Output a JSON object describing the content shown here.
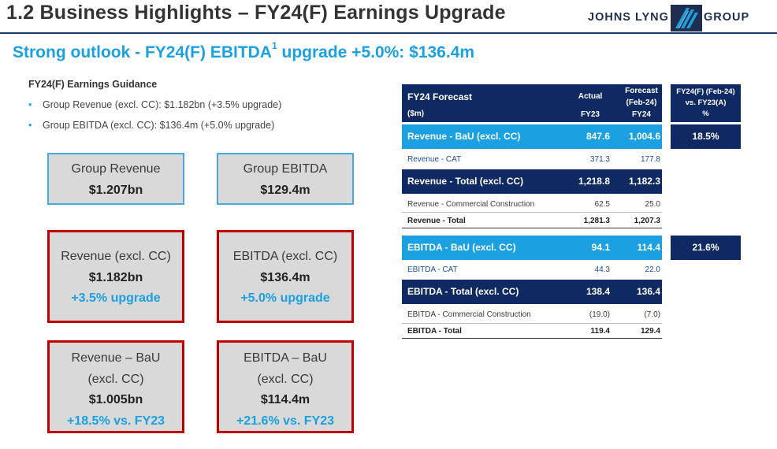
{
  "header": {
    "title": "1.2 Business Highlights – FY24(F) Earnings Upgrade",
    "logo_left": "JOHNS LYNG",
    "logo_right": "GROUP"
  },
  "subtitle": {
    "text": "Strong outlook - FY24(F) EBITDA",
    "sup": "1",
    "text_after": " upgrade +5.0%: $136.4m"
  },
  "guidance": {
    "heading": "FY24(F) Earnings Guidance",
    "bullets": [
      "Group Revenue (excl. CC): $1.182bn (+3.5% upgrade)",
      "Group EBITDA (excl. CC): $136.4m (+5.0% upgrade)"
    ]
  },
  "boxes": {
    "group_revenue": {
      "label": "Group Revenue",
      "value": "$1.207bn"
    },
    "group_ebitda": {
      "label": "Group EBITDA",
      "value": "$129.4m"
    },
    "revenue_excl": {
      "label": "Revenue (excl. CC)",
      "value": "$1.182bn",
      "note": "+3.5% upgrade"
    },
    "ebitda_excl": {
      "label": "EBITDA (excl. CC)",
      "value": "$136.4m",
      "note": "+5.0% upgrade"
    },
    "revenue_bau": {
      "label1": "Revenue – BaU",
      "label2": "(excl. CC)",
      "value": "$1.005bn",
      "note": "+18.5% vs. FY23"
    },
    "ebitda_bau": {
      "label1": "EBITDA – BaU",
      "label2": "(excl. CC)",
      "value": "$114.4m",
      "note": "+21.6% vs. FY23"
    }
  },
  "table": {
    "head": {
      "title": "FY24 Forecast",
      "unit": "($m)",
      "col1_a": "Actual",
      "col1_b": "FY23",
      "col2_a": "Forecast",
      "col2_b": "(Feb-24)",
      "col2_c": "FY24",
      "pct_a": "FY24(F) (Feb-24)",
      "pct_b": "vs. FY23(A)",
      "pct_c": "%"
    },
    "rows": [
      {
        "label": "Revenue - BaU (excl. CC)",
        "fy23": "847.6",
        "fy24": "1,004.6",
        "pct": "18.5%"
      },
      {
        "label": "Revenue - CAT",
        "fy23": "371.3",
        "fy24": "177.8"
      },
      {
        "label": "Revenue - Total (excl. CC)",
        "fy23": "1,218.8",
        "fy24": "1,182.3"
      },
      {
        "label": "Revenue - Commercial Construction",
        "fy23": "62.5",
        "fy24": "25.0"
      },
      {
        "label": "Revenue - Total",
        "fy23": "1,281.3",
        "fy24": "1,207.3"
      },
      {
        "label": "EBITDA - BaU (excl. CC)",
        "fy23": "94.1",
        "fy24": "114.4",
        "pct": "21.6%"
      },
      {
        "label": "EBITDA - CAT",
        "fy23": "44.3",
        "fy24": "22.0"
      },
      {
        "label": "EBITDA - Total (excl. CC)",
        "fy23": "138.4",
        "fy24": "136.4"
      },
      {
        "label": "EBITDA - Commercial Construction",
        "fy23": "(19.0)",
        "fy24": "(7.0)"
      },
      {
        "label": "EBITDA - Total",
        "fy23": "119.4",
        "fy24": "129.4"
      }
    ]
  },
  "colors": {
    "navy": "#0f2a63",
    "cyan": "#1ba1e2",
    "red_border": "#c00000",
    "blue_border": "#4aa9dc",
    "box_fill": "#d9d9d9"
  }
}
